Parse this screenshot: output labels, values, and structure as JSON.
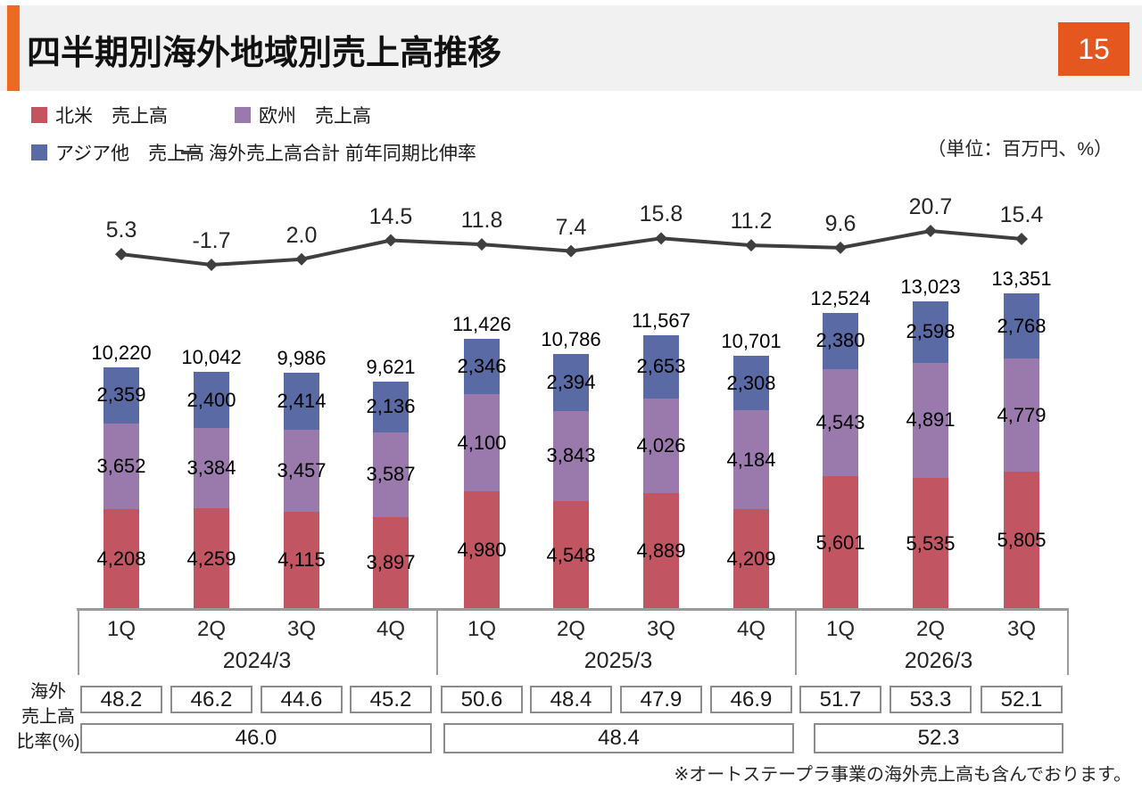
{
  "header": {
    "title": "四半期別海外地域別売上高推移",
    "page_number": "15"
  },
  "legend": {
    "items": [
      {
        "label": "北米　売上高",
        "marker": "square",
        "color": "#C15562"
      },
      {
        "label": "欧州　売上高",
        "marker": "square",
        "color": "#9A7AAC"
      },
      {
        "label": "アジア他　売上高",
        "marker": "square",
        "color": "#5A6AA4"
      },
      {
        "label": "海外売上高合計 前年同期比伸率",
        "marker": "line",
        "color": "#3F3F3F"
      }
    ]
  },
  "units_note": "（単位：百万円、%）",
  "ratio_label_lines": [
    "海外",
    "売上高",
    "比率(%)"
  ],
  "footnote": "※オートステープラ事業の海外売上高も含んでおります。",
  "chart_data": {
    "type": "bar",
    "subtype": "stacked-bar-with-line",
    "categories": [
      "1Q",
      "2Q",
      "3Q",
      "4Q",
      "1Q",
      "2Q",
      "3Q",
      "4Q",
      "1Q",
      "2Q",
      "3Q"
    ],
    "groups": [
      {
        "label": "2024/3",
        "count": 4
      },
      {
        "label": "2025/3",
        "count": 4
      },
      {
        "label": "2026/3",
        "count": 3
      }
    ],
    "series": [
      {
        "name": "北米 売上高",
        "color": "#C15562",
        "values": [
          4208,
          4259,
          4115,
          3897,
          4980,
          4548,
          4889,
          4209,
          5601,
          5535,
          5805
        ]
      },
      {
        "name": "欧州 売上高",
        "color": "#9A7AAC",
        "values": [
          3652,
          3384,
          3457,
          3587,
          4100,
          3843,
          4026,
          4184,
          4543,
          4891,
          4779
        ]
      },
      {
        "name": "アジア他 売上高",
        "color": "#5A6AA4",
        "values": [
          2359,
          2400,
          2414,
          2136,
          2346,
          2394,
          2653,
          2308,
          2380,
          2598,
          2768
        ]
      }
    ],
    "totals": [
      10220,
      10042,
      9986,
      9621,
      11426,
      10786,
      11567,
      10701,
      12524,
      13023,
      13351
    ],
    "line": {
      "name": "海外売上高合計 前年同期比伸率",
      "color": "#3F3F3F",
      "values": [
        5.3,
        -1.7,
        2.0,
        14.5,
        11.8,
        7.4,
        15.8,
        11.2,
        9.6,
        20.7,
        15.4
      ]
    },
    "ratio_table": {
      "row_label": "海外売上高比率(%)",
      "quarterly": [
        48.2,
        46.2,
        44.6,
        45.2,
        50.6,
        48.4,
        47.9,
        46.9,
        51.7,
        53.3,
        52.1
      ],
      "yearly": [
        46.0,
        48.4,
        52.3
      ]
    },
    "value_axis": {
      "visible": false,
      "unit": "百万円"
    },
    "legend_position": "top-left"
  }
}
